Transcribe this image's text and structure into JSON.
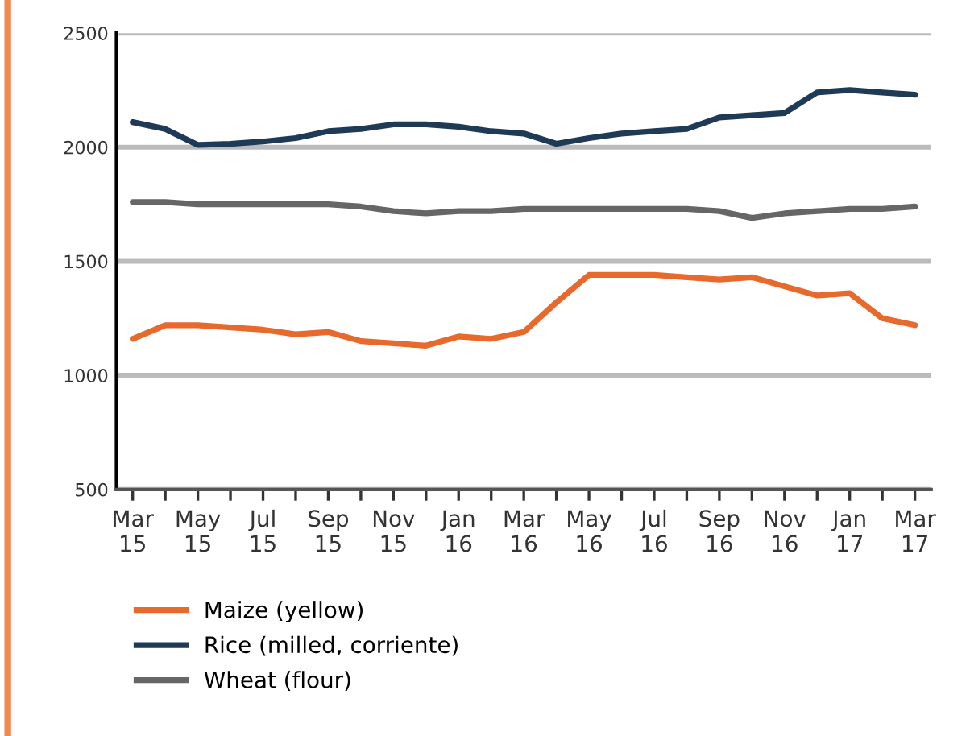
{
  "chart_data": {
    "type": "line",
    "categories": [
      "Mar\n15",
      null,
      "May\n15",
      null,
      "Jul\n15",
      null,
      "Sep\n15",
      null,
      "Nov\n15",
      null,
      "Jan\n16",
      null,
      "Mar\n16",
      null,
      "May\n16",
      null,
      "Jul\n16",
      null,
      "Sep\n16",
      null,
      "Nov\n16",
      null,
      "Jan\n17",
      null,
      "Mar\n17"
    ],
    "series": [
      {
        "name": "Maize (yellow)",
        "color": "#e8692c",
        "values": [
          1160,
          1220,
          1220,
          1210,
          1200,
          1180,
          1190,
          1150,
          1140,
          1130,
          1170,
          1160,
          1190,
          1320,
          1440,
          1440,
          1440,
          1430,
          1420,
          1430,
          1390,
          1350,
          1360,
          1250,
          1220
        ]
      },
      {
        "name": "Rice (milled, corriente)",
        "color": "#1e3a56",
        "values": [
          2110,
          2080,
          2010,
          2015,
          2025,
          2040,
          2070,
          2080,
          2100,
          2100,
          2090,
          2070,
          2060,
          2015,
          2040,
          2060,
          2070,
          2080,
          2130,
          2140,
          2150,
          2240,
          2250,
          2240,
          2230
        ]
      },
      {
        "name": "Wheat (flour)",
        "color": "#666666",
        "values": [
          1760,
          1760,
          1750,
          1750,
          1750,
          1750,
          1750,
          1740,
          1720,
          1710,
          1720,
          1720,
          1730,
          1730,
          1730,
          1730,
          1730,
          1730,
          1720,
          1690,
          1710,
          1720,
          1730,
          1730,
          1740
        ]
      }
    ],
    "ylim": [
      500,
      2500
    ],
    "yticks": [
      500,
      1000,
      1500,
      2000,
      2500
    ],
    "grid": "y",
    "legend": "bottom",
    "marker": "none",
    "line_style": "solid"
  }
}
